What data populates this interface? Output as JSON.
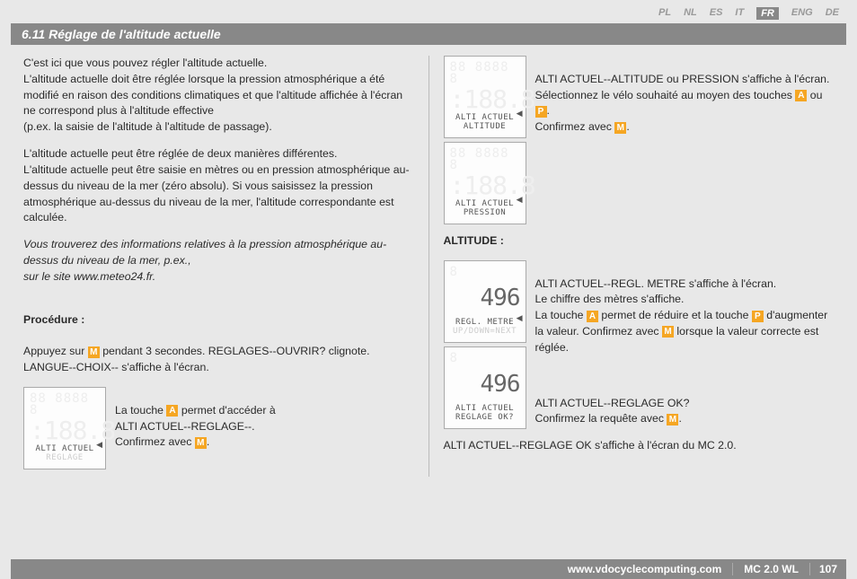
{
  "langs": {
    "items": [
      "PL",
      "NL",
      "ES",
      "IT",
      "FR",
      "ENG",
      "DE"
    ],
    "active_index": 4
  },
  "title": "6.11 Réglage de l'altitude actuelle",
  "left": {
    "p1": "C'est ici que vous pouvez régler l'altitude actuelle.\nL'altitude actuelle doit être réglée lorsque la pression atmosphérique a été modifié en raison des conditions climatiques et que l'altitude affichée à l'écran ne correspond plus à l'altitude effective\n(p.ex. la saisie de l'altitude à l'altitude de passage).",
    "p2": "L'altitude actuelle peut être réglée de deux manières différentes.\nL'altitude actuelle peut être saisie en mètres ou en pression atmosphérique au-dessus du niveau de la mer (zéro absolu). Si vous saisissez la pression atmosphérique au-dessus du niveau de la mer, l'altitude correspondante est calculée.",
    "p3": "Vous trouverez des informations relatives à la pression atmosphérique au-dessus du niveau de la mer, p.ex.,\nsur le site www.meteo24.fr.",
    "proc_label": "Procédure :",
    "proc_a": "Appuyez  sur ",
    "proc_b": " pendant 3 secondes. REGLAGES--OUVRIR? clignote.\nLANGUE--CHOIX--  s'affiche à l'écran.",
    "img1_a": "La touche ",
    "img1_b": " permet d'accéder à\nALTI ACTUEL--REGLAGE--.\nConfirmez avec ",
    "img1_c": ".",
    "lcd1_l1": "ALTI ACTUEL",
    "lcd1_l2": "REGLAGE"
  },
  "right": {
    "r1_a": "ALTI ACTUEL--ALTITUDE ou PRESSION s'affiche à l'écran. Sélectionnez le vélo souhaité au moyen des touches ",
    "r1_b": " ou ",
    "r1_c": ".\nConfirmez avec ",
    "r1_d": ".",
    "lcd2a_l1": "ALTI ACTUEL",
    "lcd2a_l2": "ALTITUDE",
    "lcd2b_l1": "ALTI ACTUEL",
    "lcd2b_l2": "PRESSION",
    "alt_label": "ALTITUDE :",
    "r2_a": "ALTI ACTUEL--REGL. METRE s'affiche à l'écran.\nLe chiffre des mètres s'affiche.\nLa touche ",
    "r2_b": " permet de réduire et la touche ",
    "r2_c": " d'augmenter la valeur. Confirmez avec ",
    "r2_d": " lorsque la valeur correcte est réglée.",
    "lcd3_val": "496",
    "lcd3_l1": "REGL. METRE",
    "lcd3_l2": "UP/DOWN=NEXT",
    "r3_a": "ALTI ACTUEL--REGLAGE OK?\nConfirmez la requête avec ",
    "r3_b": ".",
    "lcd4_val": "496",
    "lcd4_l1": "ALTI ACTUEL",
    "lcd4_l2": "REGLAGE OK?",
    "r4": "ALTI ACTUEL--REGLAGE OK s'affiche à l'écran du MC 2.0."
  },
  "buttons": {
    "M": "M",
    "A": "A",
    "P": "P"
  },
  "footer": {
    "url": "www.vdocyclecomputing.com",
    "model": "MC 2.0 WL",
    "page": "107"
  },
  "colors": {
    "accent": "#f5a623",
    "bar": "#888888",
    "bg": "#e8e8e8"
  }
}
